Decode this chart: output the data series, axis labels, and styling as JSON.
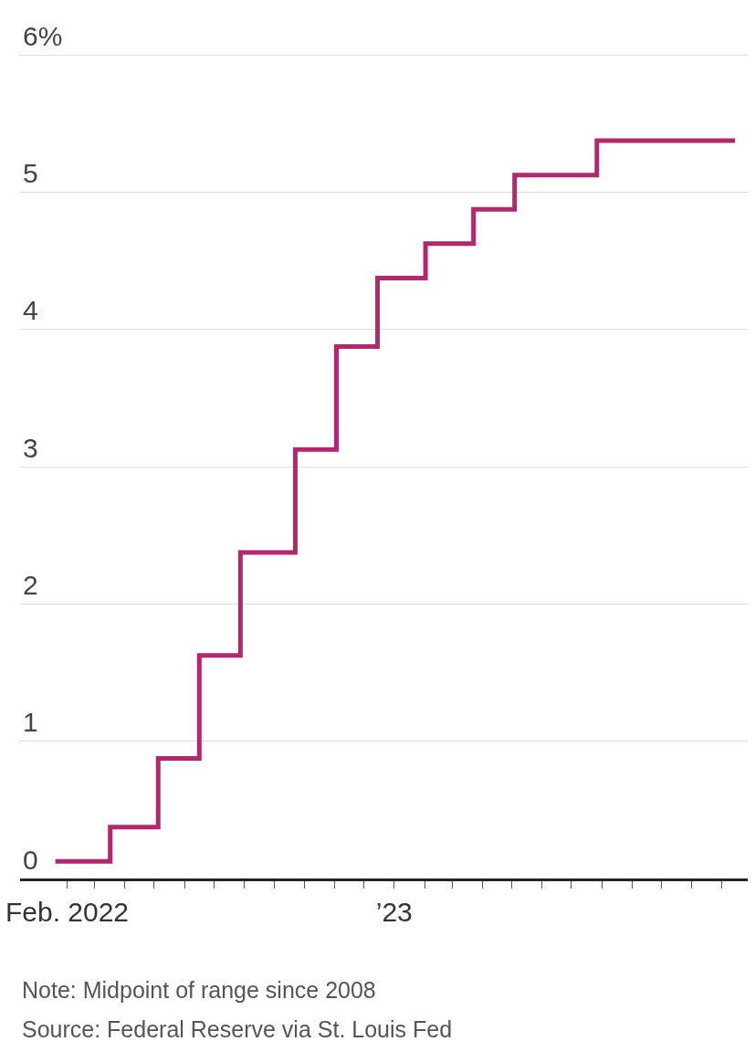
{
  "chart_data": {
    "type": "step",
    "x": [
      "2022-01-20",
      "2022-03-17",
      "2022-05-05",
      "2022-06-16",
      "2022-07-28",
      "2022-09-22",
      "2022-11-03",
      "2022-12-15",
      "2023-02-02",
      "2023-03-23",
      "2023-05-04",
      "2023-07-27",
      "2023-12-15"
    ],
    "series": [
      {
        "color": "#b5266e",
        "values": [
          0.125,
          0.375,
          0.875,
          1.625,
          2.375,
          3.125,
          3.875,
          4.375,
          4.625,
          4.875,
          5.125,
          5.375,
          5.375
        ]
      }
    ],
    "xlim": [
      "2021-12-15",
      "2023-12-28"
    ],
    "xticks": [
      {
        "value": "2022-02-01",
        "label": "Feb. 2022"
      },
      {
        "value": "2022-03-01",
        "label": null
      },
      {
        "value": "2022-04-01",
        "label": null
      },
      {
        "value": "2022-05-01",
        "label": null
      },
      {
        "value": "2022-06-01",
        "label": null
      },
      {
        "value": "2022-07-01",
        "label": null
      },
      {
        "value": "2022-08-01",
        "label": null
      },
      {
        "value": "2022-09-01",
        "label": null
      },
      {
        "value": "2022-10-01",
        "label": null
      },
      {
        "value": "2022-11-01",
        "label": null
      },
      {
        "value": "2022-12-01",
        "label": null
      },
      {
        "value": "2023-01-01",
        "label": "’23"
      },
      {
        "value": "2023-02-01",
        "label": null
      },
      {
        "value": "2023-03-01",
        "label": null
      },
      {
        "value": "2023-04-01",
        "label": null
      },
      {
        "value": "2023-05-01",
        "label": null
      },
      {
        "value": "2023-06-01",
        "label": null
      },
      {
        "value": "2023-07-01",
        "label": null
      },
      {
        "value": "2023-08-01",
        "label": null
      },
      {
        "value": "2023-09-01",
        "label": null
      },
      {
        "value": "2023-10-01",
        "label": null
      },
      {
        "value": "2023-11-01",
        "label": null
      },
      {
        "value": "2023-12-01",
        "label": null
      }
    ],
    "ylim": [
      0,
      6.4
    ],
    "yticks": [
      0,
      1,
      2,
      3,
      4,
      5,
      {
        "value": 6,
        "label": "6%"
      }
    ],
    "grid": "y",
    "annotations": [
      "Note: Midpoint of range since 2008",
      "Source: Federal Reserve via St. Louis Fed"
    ]
  }
}
